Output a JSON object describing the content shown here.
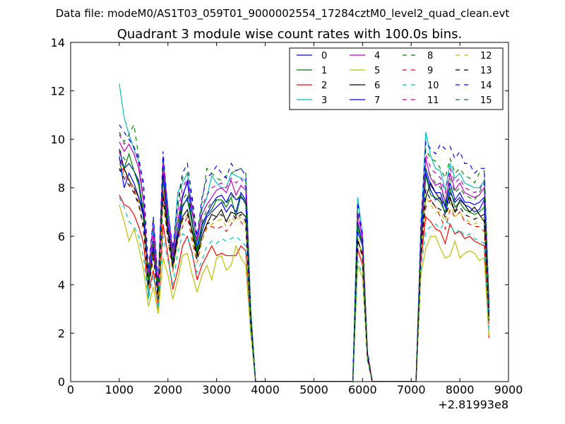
{
  "suptitle": "Data file: modeM0/AS1T03_059T01_9000002554_17284cztM0_level2_quad_clean.evt",
  "chart_data": {
    "type": "line",
    "title": "Quadrant 3 module wise count rates with 100.0s bins.",
    "xlabel": "",
    "ylabel": "",
    "x_offset_label": "+2.81993e8",
    "xlim": [
      0,
      9000
    ],
    "ylim": [
      0,
      14
    ],
    "xticks": [
      0,
      1000,
      2000,
      3000,
      4000,
      5000,
      6000,
      7000,
      8000,
      9000
    ],
    "yticks": [
      0,
      2,
      4,
      6,
      8,
      10,
      12,
      14
    ],
    "grid": false,
    "legend_location": "top-right",
    "legend_columns": 4,
    "x": [
      1000,
      1100,
      1200,
      1300,
      1400,
      1500,
      1600,
      1700,
      1800,
      1900,
      2000,
      2100,
      2200,
      2300,
      2400,
      2500,
      2600,
      2700,
      2800,
      2900,
      3000,
      3100,
      3200,
      3300,
      3400,
      3500,
      3600,
      3700,
      3800,
      3900,
      4000,
      5800,
      5900,
      6000,
      6100,
      6200,
      6300,
      7100,
      7200,
      7300,
      7400,
      7500,
      7600,
      7700,
      7800,
      7900,
      8000,
      8100,
      8200,
      8300,
      8400,
      8500,
      8600
    ],
    "series": [
      {
        "name": "0",
        "color": "#0000ff",
        "dash": "solid",
        "values": [
          9.6,
          8.8,
          9.0,
          8.7,
          8.3,
          6.9,
          4.2,
          5.8,
          3.8,
          8.5,
          6.2,
          5.0,
          5.8,
          7.2,
          7.6,
          6.6,
          5.4,
          6.2,
          6.8,
          7.0,
          7.2,
          7.4,
          7.0,
          7.3,
          7.0,
          7.8,
          7.5,
          2.8,
          0,
          0,
          0,
          0,
          6.6,
          5.7,
          1.2,
          0,
          0,
          0,
          5.8,
          8.6,
          7.9,
          7.5,
          7.6,
          6.9,
          7.8,
          7.4,
          7.6,
          7.3,
          7.2,
          7.0,
          7.1,
          7.5,
          2.8
        ]
      },
      {
        "name": "1",
        "color": "#008000",
        "dash": "solid",
        "values": [
          9.2,
          8.8,
          9.4,
          8.7,
          8.1,
          6.7,
          4.2,
          5.7,
          3.8,
          8.4,
          6.4,
          5.0,
          6.2,
          7.3,
          7.5,
          6.5,
          5.3,
          6.4,
          6.9,
          7.1,
          7.5,
          7.5,
          7.2,
          7.6,
          6.8,
          7.7,
          7.3,
          2.7,
          0,
          0,
          0,
          0,
          6.5,
          5.6,
          1.1,
          0,
          0,
          0,
          5.7,
          8.5,
          7.7,
          7.6,
          7.4,
          7.0,
          8.0,
          7.2,
          7.4,
          7.1,
          7.0,
          6.9,
          7.0,
          7.2,
          2.7
        ]
      },
      {
        "name": "2",
        "color": "#ff0000",
        "dash": "solid",
        "values": [
          7.7,
          7.3,
          7.2,
          6.9,
          6.4,
          5.7,
          3.6,
          4.6,
          3.0,
          6.5,
          5.2,
          3.8,
          4.6,
          5.6,
          6.0,
          5.3,
          4.2,
          4.8,
          5.2,
          5.6,
          5.2,
          5.3,
          5.2,
          5.2,
          5.2,
          5.6,
          5.4,
          2.3,
          0,
          0,
          0,
          0,
          5.5,
          4.8,
          1.0,
          0,
          0,
          0,
          5.0,
          6.8,
          6.6,
          6.3,
          6.2,
          5.7,
          6.5,
          6.1,
          6.2,
          5.9,
          6.0,
          5.8,
          5.7,
          5.6,
          1.8
        ]
      },
      {
        "name": "3",
        "color": "#00bfbf",
        "dash": "solid",
        "values": [
          12.3,
          10.9,
          10.2,
          9.6,
          9.1,
          7.4,
          3.4,
          6.4,
          3.2,
          9.2,
          7.2,
          5.2,
          7.8,
          8.2,
          8.6,
          7.2,
          5.6,
          7.1,
          7.6,
          8.5,
          8.2,
          8.0,
          8.0,
          8.6,
          8.5,
          8.4,
          8.3,
          3.0,
          0,
          0,
          0,
          0,
          7.6,
          6.1,
          1.2,
          0,
          0,
          0,
          6.4,
          10.3,
          9.3,
          8.8,
          8.7,
          7.9,
          9.0,
          8.4,
          8.6,
          8.2,
          8.1,
          8.0,
          8.0,
          8.3,
          3.2
        ]
      },
      {
        "name": "4",
        "color": "#bf00bf",
        "dash": "solid",
        "values": [
          9.9,
          9.5,
          9.8,
          9.4,
          8.8,
          7.4,
          4.4,
          6.1,
          3.8,
          9.0,
          6.6,
          5.2,
          6.6,
          7.7,
          8.2,
          7.0,
          5.8,
          6.9,
          7.3,
          7.6,
          7.9,
          8.0,
          7.8,
          8.3,
          7.7,
          8.1,
          7.9,
          2.9,
          0,
          0,
          0,
          0,
          6.9,
          5.9,
          1.2,
          0,
          0,
          0,
          6.0,
          9.2,
          8.4,
          8.1,
          8.2,
          7.4,
          8.6,
          7.9,
          8.2,
          7.8,
          7.7,
          7.6,
          7.7,
          8.0,
          3.0
        ]
      },
      {
        "name": "5",
        "color": "#bfbf00",
        "dash": "solid",
        "values": [
          7.3,
          6.6,
          5.8,
          6.3,
          5.6,
          4.6,
          3.1,
          3.9,
          2.8,
          5.1,
          4.4,
          3.4,
          4.2,
          5.2,
          5.3,
          4.4,
          3.7,
          4.4,
          4.8,
          4.2,
          5.1,
          5.2,
          4.6,
          4.8,
          5.6,
          5.1,
          4.8,
          2.0,
          0,
          0,
          0,
          0,
          4.8,
          4.3,
          0.9,
          0,
          0,
          0,
          4.4,
          5.5,
          6.0,
          6.0,
          5.5,
          5.1,
          5.2,
          5.8,
          5.1,
          5.3,
          5.4,
          5.3,
          5.0,
          5.1,
          1.9
        ]
      },
      {
        "name": "6",
        "color": "#000000",
        "dash": "solid",
        "values": [
          8.7,
          8.8,
          8.3,
          8.0,
          7.6,
          6.9,
          4.0,
          5.4,
          3.6,
          7.8,
          6.2,
          4.8,
          6.0,
          6.8,
          7.1,
          6.2,
          5.2,
          6.0,
          6.5,
          6.9,
          6.8,
          7.1,
          6.6,
          7.0,
          6.9,
          7.0,
          6.8,
          2.6,
          0,
          0,
          0,
          0,
          5.8,
          5.3,
          1.1,
          0,
          0,
          0,
          5.4,
          7.6,
          8.2,
          7.8,
          7.5,
          7.3,
          7.6,
          7.0,
          7.5,
          7.3,
          7.0,
          7.2,
          6.9,
          6.6,
          2.5
        ]
      },
      {
        "name": "7",
        "color": "#0000ff",
        "dash": "solid",
        "values": [
          9.3,
          8.0,
          8.6,
          8.2,
          7.6,
          6.8,
          3.9,
          5.6,
          3.5,
          8.6,
          6.4,
          4.9,
          6.2,
          7.6,
          8.3,
          6.6,
          5.5,
          6.5,
          6.9,
          7.3,
          7.6,
          7.7,
          7.4,
          7.8,
          7.5,
          7.6,
          7.4,
          2.7,
          0,
          0,
          0,
          0,
          6.2,
          5.6,
          1.1,
          0,
          0,
          0,
          5.6,
          8.8,
          8.1,
          7.8,
          7.8,
          7.2,
          8.2,
          7.5,
          7.8,
          7.4,
          7.4,
          7.3,
          7.4,
          7.6,
          2.9
        ]
      },
      {
        "name": "8",
        "color": "#008000",
        "dash": "dashed",
        "values": [
          10.3,
          9.9,
          10.2,
          10.6,
          9.3,
          8.0,
          4.3,
          6.8,
          4.0,
          9.2,
          7.0,
          5.4,
          7.2,
          8.4,
          8.6,
          7.4,
          5.9,
          7.4,
          8.8,
          8.6,
          8.4,
          8.3,
          8.5,
          8.6,
          8.7,
          8.8,
          8.6,
          3.0,
          0,
          0,
          0,
          0,
          7.1,
          6.0,
          1.2,
          0,
          0,
          0,
          6.3,
          9.6,
          9.2,
          9.1,
          8.8,
          8.4,
          9.2,
          8.6,
          8.8,
          8.5,
          8.4,
          8.2,
          8.6,
          8.7,
          3.3
        ]
      },
      {
        "name": "9",
        "color": "#ff0000",
        "dash": "dashed",
        "values": [
          9.5,
          8.6,
          8.2,
          7.9,
          7.4,
          6.2,
          3.9,
          5.3,
          3.3,
          7.9,
          5.8,
          4.6,
          5.8,
          6.4,
          6.8,
          5.8,
          4.9,
          5.8,
          6.4,
          6.4,
          6.3,
          6.4,
          6.2,
          6.5,
          6.8,
          6.6,
          6.3,
          2.5,
          0,
          0,
          0,
          0,
          5.9,
          5.2,
          1.1,
          0,
          0,
          0,
          5.2,
          7.2,
          7.5,
          7.2,
          6.8,
          6.3,
          7.1,
          6.8,
          7.0,
          6.6,
          6.5,
          6.4,
          6.4,
          6.2,
          2.4
        ]
      },
      {
        "name": "10",
        "color": "#00bfbf",
        "dash": "dashed",
        "values": [
          7.6,
          7.2,
          6.6,
          6.4,
          6.0,
          5.1,
          3.4,
          4.4,
          3.0,
          6.0,
          5.0,
          4.0,
          5.3,
          6.1,
          6.0,
          5.2,
          4.5,
          5.0,
          5.6,
          5.8,
          5.7,
          5.9,
          5.8,
          5.9,
          6.0,
          5.8,
          5.6,
          2.2,
          0,
          0,
          0,
          0,
          5.0,
          4.4,
          0.9,
          0,
          0,
          0,
          4.6,
          6.2,
          6.4,
          6.5,
          6.3,
          6.6,
          6.5,
          6.1,
          6.3,
          6.0,
          6.1,
          5.9,
          5.8,
          5.7,
          2.1
        ]
      },
      {
        "name": "11",
        "color": "#bf00bf",
        "dash": "dashed",
        "values": [
          10.2,
          9.8,
          10.0,
          9.7,
          9.0,
          7.6,
          4.5,
          6.6,
          3.9,
          9.3,
          6.8,
          5.3,
          7.0,
          8.0,
          8.4,
          7.2,
          5.8,
          7.2,
          7.7,
          8.0,
          8.1,
          8.2,
          8.0,
          8.4,
          8.2,
          8.4,
          8.0,
          2.9,
          0,
          0,
          0,
          0,
          7.0,
          6.0,
          1.2,
          0,
          0,
          0,
          6.1,
          9.4,
          8.8,
          8.6,
          8.4,
          7.8,
          8.8,
          8.2,
          8.4,
          8.0,
          7.9,
          7.8,
          7.9,
          8.3,
          3.1
        ]
      },
      {
        "name": "12",
        "color": "#bfbf00",
        "dash": "dashed",
        "values": [
          9.0,
          8.5,
          8.4,
          8.0,
          7.5,
          6.4,
          3.8,
          5.2,
          3.3,
          7.4,
          5.8,
          4.5,
          5.8,
          6.6,
          6.9,
          6.0,
          4.9,
          5.8,
          6.3,
          6.5,
          6.6,
          6.7,
          6.4,
          6.8,
          6.6,
          6.8,
          6.5,
          2.5,
          0,
          0,
          0,
          0,
          6.0,
          5.2,
          1.1,
          0,
          0,
          0,
          5.3,
          7.6,
          7.3,
          7.0,
          7.0,
          6.6,
          7.4,
          6.8,
          7.0,
          6.7,
          6.6,
          6.5,
          6.6,
          6.8,
          2.6
        ]
      },
      {
        "name": "13",
        "color": "#000000",
        "dash": "dashed",
        "values": [
          8.8,
          8.4,
          8.1,
          7.8,
          7.3,
          6.4,
          3.9,
          5.1,
          3.4,
          7.6,
          5.9,
          4.7,
          6.0,
          6.7,
          6.9,
          6.1,
          5.0,
          6.0,
          6.5,
          6.6,
          6.8,
          6.9,
          6.6,
          7.0,
          6.7,
          6.9,
          6.6,
          2.5,
          0,
          0,
          0,
          0,
          5.9,
          5.1,
          1.0,
          0,
          0,
          0,
          5.3,
          7.9,
          7.5,
          7.2,
          7.1,
          6.8,
          7.5,
          7.0,
          7.2,
          6.9,
          6.8,
          6.7,
          6.8,
          6.9,
          2.6
        ]
      },
      {
        "name": "14",
        "color": "#0000ff",
        "dash": "dashed",
        "values": [
          10.6,
          10.3,
          10.0,
          9.7,
          9.2,
          8.2,
          4.6,
          6.8,
          4.1,
          9.5,
          7.0,
          5.5,
          7.4,
          8.6,
          9.0,
          7.6,
          6.0,
          7.6,
          8.4,
          8.6,
          8.9,
          8.6,
          8.4,
          9.0,
          8.7,
          8.8,
          8.5,
          3.0,
          0,
          0,
          0,
          0,
          7.4,
          6.1,
          1.3,
          0,
          0,
          0,
          6.5,
          9.9,
          9.6,
          9.4,
          9.8,
          9.6,
          9.7,
          9.2,
          9.5,
          9.0,
          9.0,
          8.6,
          8.8,
          8.8,
          3.3
        ]
      },
      {
        "name": "15",
        "color": "#008000",
        "dash": "dashed",
        "values": [
          9.6,
          9.2,
          9.0,
          8.7,
          8.2,
          7.1,
          4.2,
          5.8,
          3.7,
          8.3,
          6.4,
          5.0,
          6.6,
          7.5,
          7.8,
          6.7,
          5.4,
          6.6,
          7.1,
          7.4,
          7.5,
          7.5,
          7.3,
          7.7,
          7.5,
          7.7,
          7.4,
          2.8,
          0,
          0,
          0,
          0,
          6.4,
          5.6,
          1.1,
          0,
          0,
          0,
          5.8,
          8.8,
          8.5,
          8.2,
          8.0,
          7.4,
          8.4,
          7.8,
          8.0,
          7.7,
          7.6,
          7.5,
          7.8,
          8.2,
          3.0
        ]
      }
    ]
  }
}
